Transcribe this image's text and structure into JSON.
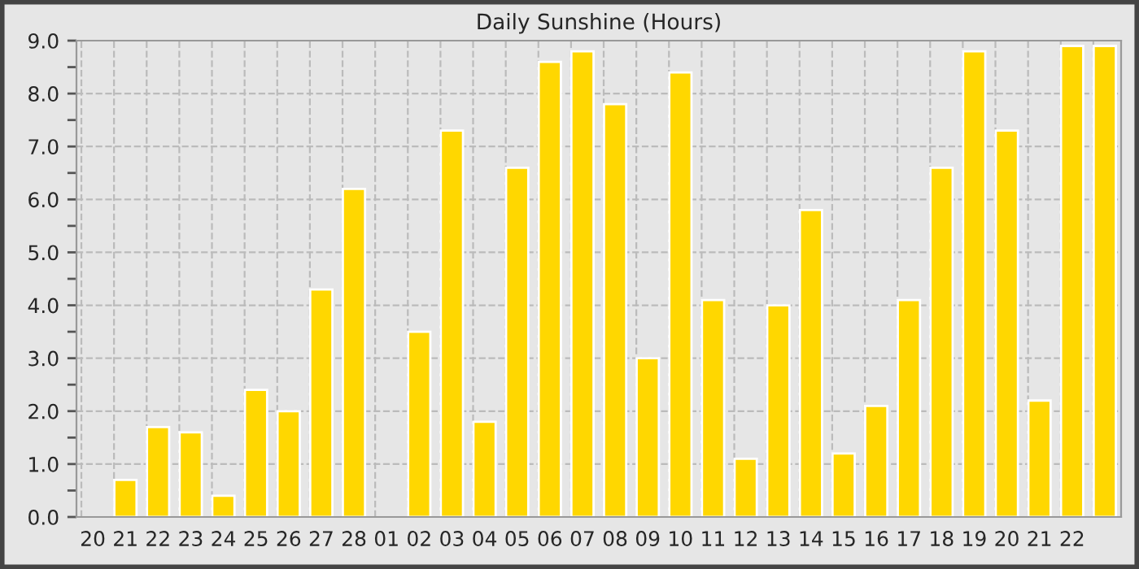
{
  "chart_data": {
    "type": "bar",
    "title": "Daily Sunshine (Hours)",
    "categories": [
      "20",
      "21",
      "22",
      "23",
      "24",
      "25",
      "26",
      "27",
      "28",
      "01",
      "02",
      "03",
      "04",
      "05",
      "06",
      "07",
      "08",
      "09",
      "10",
      "11",
      "12",
      "13",
      "14",
      "15",
      "16",
      "17",
      "18",
      "19",
      "20",
      "21",
      "22",
      null
    ],
    "values": [
      0,
      0.7,
      1.7,
      1.6,
      0.4,
      2.4,
      2.0,
      4.3,
      6.2,
      0,
      3.5,
      7.3,
      1.8,
      6.6,
      8.6,
      8.8,
      7.8,
      3.0,
      8.4,
      4.1,
      1.1,
      4.0,
      5.8,
      1.2,
      2.1,
      4.1,
      6.6,
      8.8,
      7.3,
      2.2,
      8.9,
      8.9
    ],
    "color": "#ffd700",
    "ylim": [
      0,
      9
    ],
    "yticks": [
      {
        "value": 0,
        "label": "0.0"
      },
      {
        "value": 0.5,
        "label": null
      },
      {
        "value": 1,
        "label": "1.0"
      },
      {
        "value": 1.5,
        "label": null
      },
      {
        "value": 2,
        "label": "2.0"
      },
      {
        "value": 2.5,
        "label": null
      },
      {
        "value": 3,
        "label": "3.0"
      },
      {
        "value": 3.5,
        "label": null
      },
      {
        "value": 4,
        "label": "4.0"
      },
      {
        "value": 4.5,
        "label": null
      },
      {
        "value": 5,
        "label": "5.0"
      },
      {
        "value": 5.5,
        "label": null
      },
      {
        "value": 6,
        "label": "6.0"
      },
      {
        "value": 6.5,
        "label": null
      },
      {
        "value": 7,
        "label": "7.0"
      },
      {
        "value": 7.5,
        "label": null
      },
      {
        "value": 8,
        "label": "8.0"
      },
      {
        "value": 8.5,
        "label": null
      },
      {
        "value": 9,
        "label": "9.0"
      }
    ],
    "grid": true
  }
}
